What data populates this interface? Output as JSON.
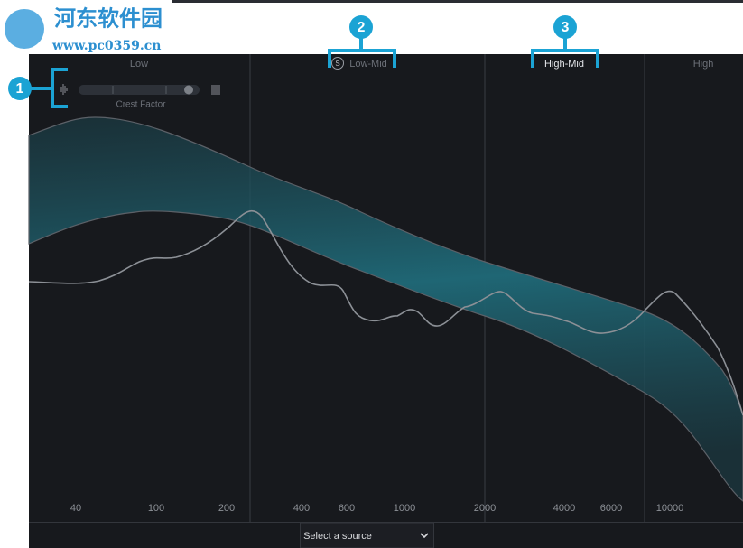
{
  "watermark": {
    "name": "河东软件园",
    "url": "www.pc0359.cn"
  },
  "bands": [
    "Low",
    "Low-Mid",
    "High-Mid",
    "High"
  ],
  "solo_badge": "S",
  "crest_factor": {
    "label": "Crest Factor"
  },
  "callouts": [
    "1",
    "2",
    "3"
  ],
  "frequency_labels": [
    "40",
    "100",
    "200",
    "400",
    "600",
    "1000",
    "2000",
    "4000",
    "6000",
    "10000"
  ],
  "footer": {
    "source_select": "Select a source"
  }
}
